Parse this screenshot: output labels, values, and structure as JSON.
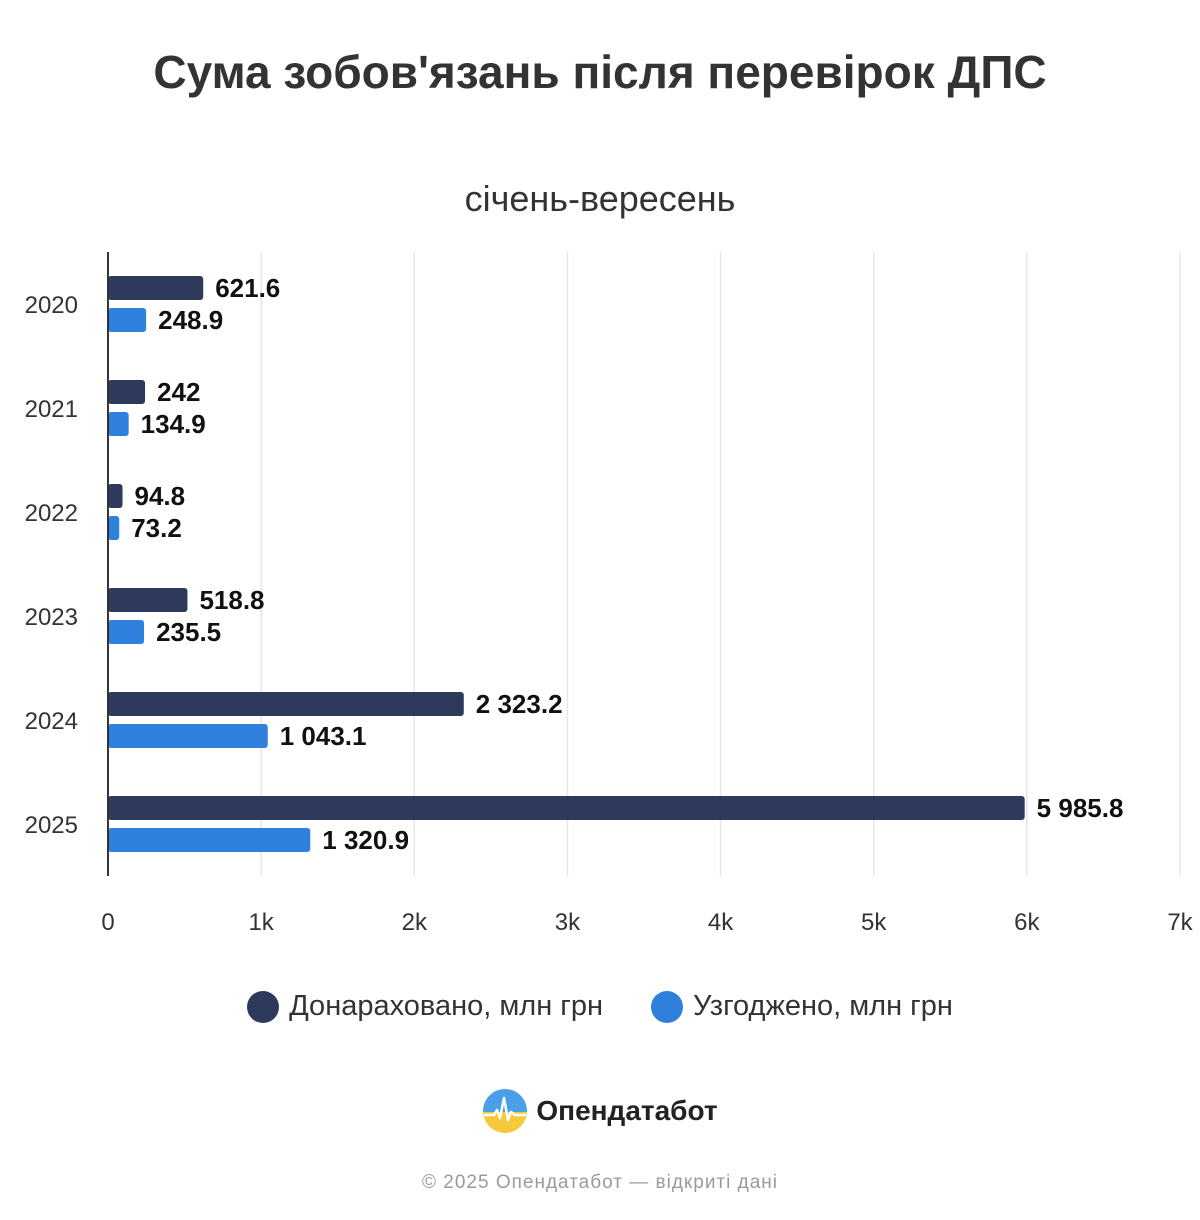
{
  "title": "Сума зобов'язань після перевірок ДПС",
  "subtitle": "січень-вересень",
  "chart_data": {
    "type": "bar",
    "orientation": "horizontal",
    "categories": [
      "2020",
      "2021",
      "2022",
      "2023",
      "2024",
      "2025"
    ],
    "series": [
      {
        "name": "Донараховано, млн грн",
        "color": "#2e3a5c",
        "values": [
          621.6,
          242,
          94.8,
          518.8,
          2323.2,
          5985.8
        ],
        "labels": [
          "621.6",
          "242",
          "94.8",
          "518.8",
          "2 323.2",
          "5 985.8"
        ]
      },
      {
        "name": "Узгоджено, млн грн",
        "color": "#2f80dd",
        "values": [
          248.9,
          134.9,
          73.2,
          235.5,
          1043.1,
          1320.9
        ],
        "labels": [
          "248.9",
          "134.9",
          "73.2",
          "235.5",
          "1 043.1",
          "1 320.9"
        ]
      }
    ],
    "xlim": [
      0,
      7000
    ],
    "ticks": [
      "0",
      "1k",
      "2k",
      "3k",
      "4k",
      "5k",
      "6k",
      "7k"
    ],
    "grid": true,
    "legend_position": "bottom"
  },
  "legend": {
    "items": [
      {
        "label": "Донараховано, млн грн",
        "color": "#2e3a5c"
      },
      {
        "label": "Узгоджено, млн грн",
        "color": "#2f80dd"
      }
    ]
  },
  "brand": {
    "name": "Опендатабот"
  },
  "footer": {
    "text": "© 2025 Опендатабот — відкриті дані"
  }
}
